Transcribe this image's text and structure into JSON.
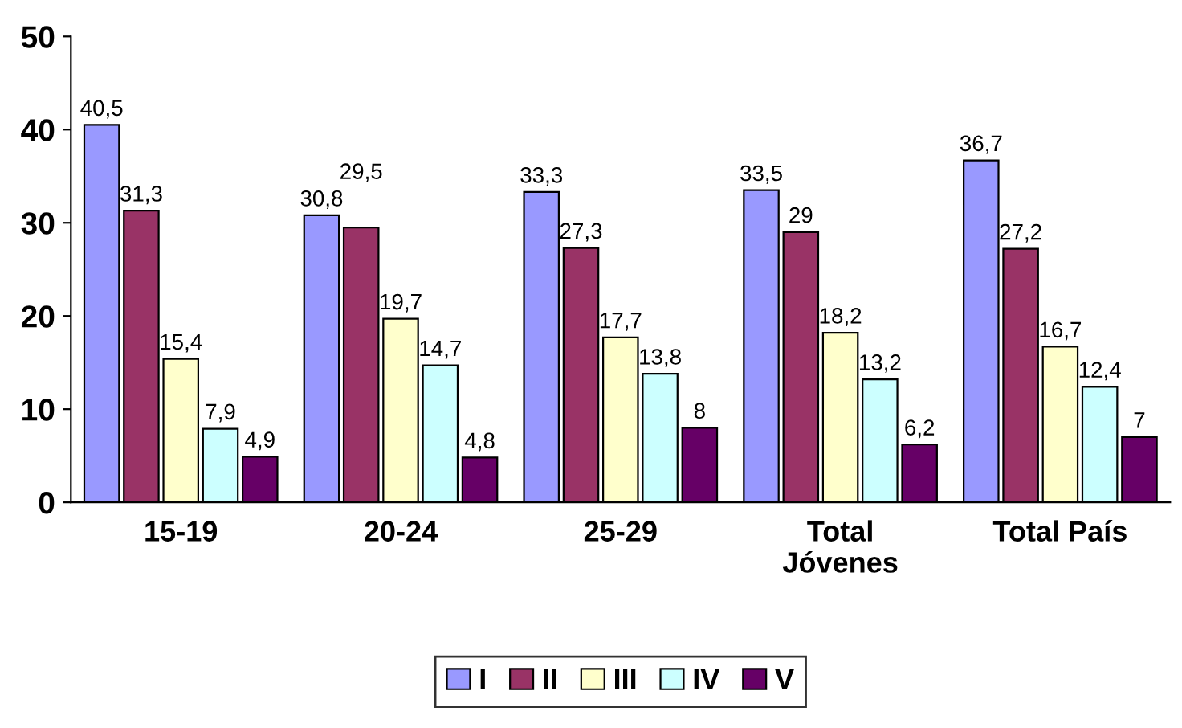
{
  "chart_data": {
    "type": "bar",
    "categories": [
      "15-19",
      "20-24",
      "25-29",
      "Total\nJóvenes",
      "Total País"
    ],
    "series": [
      {
        "name": "I",
        "color": "#9999ff",
        "values": [
          40.5,
          30.8,
          33.3,
          33.5,
          36.7
        ],
        "value_labels": [
          "40,5",
          "30,8",
          "33,3",
          "33,5",
          "36,7"
        ]
      },
      {
        "name": "II",
        "color": "#993366",
        "values": [
          31.3,
          29.5,
          27.3,
          29,
          27.2
        ],
        "value_labels": [
          "31,3",
          "29,5",
          "27,3",
          "29",
          "27,2"
        ]
      },
      {
        "name": "III",
        "color": "#ffffcc",
        "values": [
          15.4,
          19.7,
          17.7,
          18.2,
          16.7
        ],
        "value_labels": [
          "15,4",
          "19,7",
          "17,7",
          "18,2",
          "16,7"
        ]
      },
      {
        "name": "IV",
        "color": "#ccffff",
        "values": [
          7.9,
          14.7,
          13.8,
          13.2,
          12.4
        ],
        "value_labels": [
          "7,9",
          "14,7",
          "13,8",
          "13,2",
          "12,4"
        ]
      },
      {
        "name": "V",
        "color": "#660066",
        "values": [
          4.9,
          4.8,
          8,
          6.2,
          7
        ],
        "value_labels": [
          "4,9",
          "4,8",
          "8",
          "6,2",
          "7"
        ]
      }
    ],
    "ylim": [
      0,
      50
    ],
    "yticks": [
      0,
      10,
      20,
      30,
      40,
      50
    ],
    "grid": false,
    "legend": "bottom"
  }
}
